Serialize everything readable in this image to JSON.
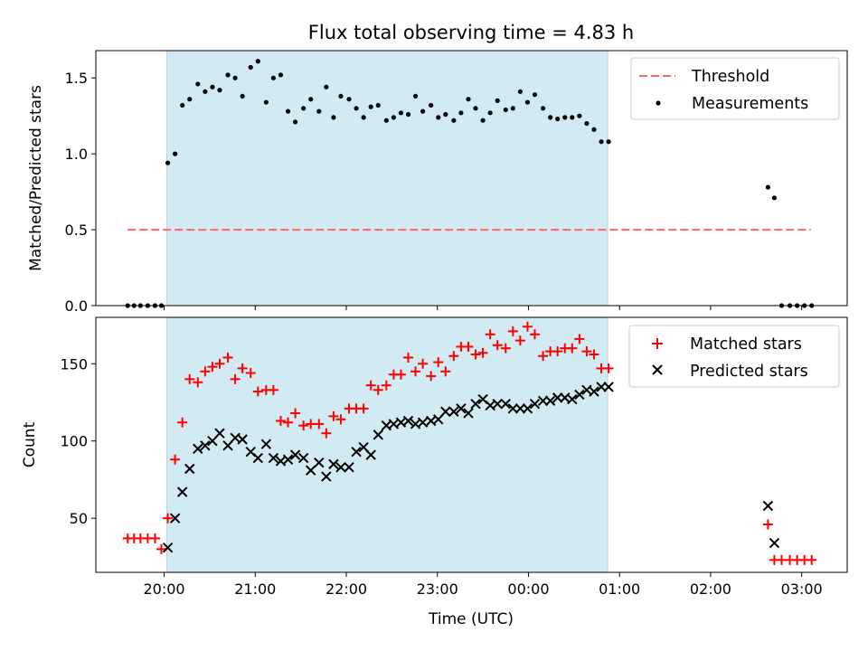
{
  "chart_data": {
    "title": "Flux total observing time = 4.83 h",
    "xlabel": "Time (UTC)",
    "x_ticks": [
      "20:00",
      "21:00",
      "22:00",
      "23:00",
      "00:00",
      "01:00",
      "02:00",
      "03:00"
    ],
    "x_tick_hours": [
      20,
      21,
      22,
      23,
      24,
      25,
      26,
      27
    ],
    "xlim": [
      19.25,
      27.5
    ],
    "shaded_span": [
      20.03,
      24.87
    ],
    "colors": {
      "shade": "#add8e6",
      "threshold": "#ff6666",
      "measurements": "#000000",
      "matched": "#ff0000",
      "predicted": "#000000"
    },
    "panels": [
      {
        "type": "scatter",
        "ylabel": "Matched/Predicted stars",
        "ylim": [
          0,
          1.68
        ],
        "y_ticks": [
          "0.0",
          "0.5",
          "1.0",
          "1.5"
        ],
        "y_tick_values": [
          0,
          0.5,
          1.0,
          1.5
        ],
        "legend": {
          "placement": "top-right",
          "entries": [
            "Threshold",
            "Measurements"
          ]
        },
        "threshold": {
          "name": "Threshold",
          "value": 0.5,
          "x_range": [
            19.6,
            27.1
          ]
        },
        "series": [
          {
            "name": "Measurements",
            "x": [
              19.6,
              19.67,
              19.74,
              19.82,
              19.9,
              19.97,
              20.04,
              20.12,
              20.2,
              20.28,
              20.37,
              20.45,
              20.53,
              20.61,
              20.7,
              20.78,
              20.86,
              20.95,
              21.03,
              21.12,
              21.2,
              21.28,
              21.36,
              21.44,
              21.53,
              21.61,
              21.7,
              21.78,
              21.86,
              21.94,
              22.03,
              22.11,
              22.19,
              22.27,
              22.35,
              22.44,
              22.52,
              22.6,
              22.68,
              22.76,
              22.84,
              22.93,
              23.01,
              23.09,
              23.18,
              23.26,
              23.34,
              23.42,
              23.5,
              23.58,
              23.66,
              23.75,
              23.83,
              23.91,
              23.99,
              24.07,
              24.16,
              24.24,
              24.32,
              24.4,
              24.48,
              24.56,
              24.64,
              24.72,
              24.8,
              24.88,
              26.63,
              26.7,
              26.78,
              26.87,
              26.95,
              27.03,
              27.11
            ],
            "y": [
              0,
              0,
              0,
              0,
              0,
              0,
              0.94,
              1.0,
              1.32,
              1.36,
              1.46,
              1.41,
              1.44,
              1.42,
              1.52,
              1.5,
              1.38,
              1.57,
              1.61,
              1.34,
              1.5,
              1.52,
              1.28,
              1.21,
              1.3,
              1.36,
              1.28,
              1.44,
              1.24,
              1.38,
              1.36,
              1.3,
              1.24,
              1.31,
              1.32,
              1.22,
              1.24,
              1.27,
              1.26,
              1.38,
              1.28,
              1.32,
              1.24,
              1.26,
              1.22,
              1.27,
              1.36,
              1.3,
              1.22,
              1.27,
              1.35,
              1.29,
              1.3,
              1.41,
              1.34,
              1.39,
              1.3,
              1.24,
              1.23,
              1.24,
              1.24,
              1.25,
              1.2,
              1.16,
              1.08,
              1.08,
              0.78,
              0.71,
              0,
              0,
              0,
              0,
              0
            ]
          }
        ]
      },
      {
        "type": "scatter",
        "ylabel": "Count",
        "ylim": [
          15,
          180
        ],
        "y_ticks": [
          "50",
          "100",
          "150"
        ],
        "y_tick_values": [
          50,
          100,
          150
        ],
        "legend": {
          "placement": "top-right",
          "entries": [
            "Matched stars",
            "Predicted stars"
          ]
        },
        "series": [
          {
            "name": "Matched stars",
            "x": [
              19.6,
              19.67,
              19.74,
              19.82,
              19.9,
              19.97,
              20.04,
              20.12,
              20.2,
              20.28,
              20.37,
              20.45,
              20.53,
              20.61,
              20.7,
              20.78,
              20.86,
              20.95,
              21.03,
              21.12,
              21.2,
              21.28,
              21.36,
              21.44,
              21.53,
              21.61,
              21.7,
              21.78,
              21.86,
              21.94,
              22.03,
              22.11,
              22.19,
              22.27,
              22.35,
              22.44,
              22.52,
              22.6,
              22.68,
              22.76,
              22.84,
              22.93,
              23.01,
              23.09,
              23.18,
              23.26,
              23.34,
              23.42,
              23.5,
              23.58,
              23.66,
              23.75,
              23.83,
              23.91,
              23.99,
              24.07,
              24.16,
              24.24,
              24.32,
              24.4,
              24.48,
              24.56,
              24.64,
              24.72,
              24.8,
              24.88,
              26.63,
              26.7,
              26.78,
              26.87,
              26.95,
              27.03,
              27.11
            ],
            "y": [
              37,
              37,
              37,
              37,
              37,
              30,
              50,
              88,
              112,
              140,
              138,
              145,
              148,
              150,
              154,
              140,
              147,
              144,
              132,
              133,
              133,
              113,
              112,
              118,
              110,
              111,
              111,
              105,
              116,
              114,
              121,
              121,
              121,
              136,
              133,
              136,
              143,
              143,
              154,
              145,
              150,
              142,
              151,
              145,
              155,
              161,
              161,
              156,
              157,
              169,
              162,
              160,
              171,
              165,
              174,
              169,
              155,
              158,
              158,
              160,
              160,
              166,
              158,
              156,
              147,
              147,
              46,
              23,
              23,
              23,
              23,
              23,
              23
            ]
          },
          {
            "name": "Predicted stars",
            "x": [
              20.04,
              20.12,
              20.2,
              20.28,
              20.37,
              20.45,
              20.53,
              20.61,
              20.7,
              20.78,
              20.86,
              20.95,
              21.03,
              21.12,
              21.2,
              21.28,
              21.36,
              21.44,
              21.53,
              21.61,
              21.7,
              21.78,
              21.86,
              21.94,
              22.03,
              22.11,
              22.19,
              22.27,
              22.35,
              22.44,
              22.52,
              22.6,
              22.68,
              22.76,
              22.84,
              22.93,
              23.01,
              23.09,
              23.18,
              23.26,
              23.34,
              23.42,
              23.5,
              23.58,
              23.66,
              23.75,
              23.83,
              23.91,
              23.99,
              24.07,
              24.16,
              24.24,
              24.32,
              24.4,
              24.48,
              24.56,
              24.64,
              24.72,
              24.8,
              24.88,
              26.63,
              26.7
            ],
            "y": [
              31,
              50,
              67,
              82,
              95,
              97,
              100,
              105,
              97,
              102,
              101,
              93,
              89,
              98,
              89,
              87,
              88,
              91,
              89,
              81,
              86,
              77,
              85,
              83,
              83,
              93,
              96,
              91,
              104,
              110,
              111,
              112,
              113,
              111,
              112,
              113,
              114,
              119,
              119,
              121,
              118,
              124,
              127,
              123,
              124,
              124,
              121,
              121,
              121,
              124,
              126,
              126,
              128,
              128,
              127,
              130,
              133,
              132,
              135,
              135,
              58,
              34
            ]
          }
        ]
      }
    ]
  }
}
